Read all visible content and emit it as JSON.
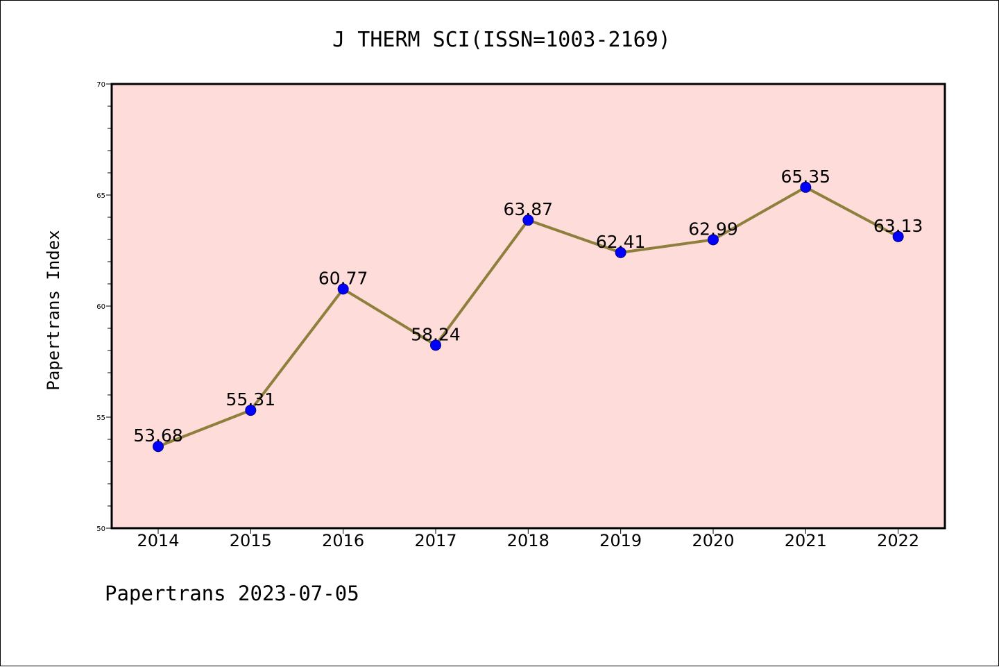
{
  "chart_data": {
    "type": "line",
    "title": "J THERM SCI(ISSN=1003-2169)",
    "xlabel": "",
    "ylabel": "Papertrans Index",
    "categories": [
      "2014",
      "2015",
      "2016",
      "2017",
      "2018",
      "2019",
      "2020",
      "2021",
      "2022"
    ],
    "values": [
      53.68,
      55.31,
      60.77,
      58.24,
      63.87,
      62.41,
      62.99,
      65.35,
      63.13
    ],
    "data_labels": [
      "53.68",
      "55.31",
      "60.77",
      "58.24",
      "63.87",
      "62.41",
      "62.99",
      "65.35",
      "63.13"
    ],
    "ylim": [
      50,
      70
    ],
    "yticks": [
      50,
      55,
      60,
      65,
      70
    ],
    "ytick_labels": [
      "50",
      "55",
      "60",
      "65",
      "70"
    ],
    "grid": false,
    "legend": "none",
    "colors": {
      "plot_background": "#fddcda",
      "line": "#8f7f3c",
      "marker": "#0000ff"
    }
  },
  "footer": {
    "text": "Papertrans 2023-07-05"
  }
}
